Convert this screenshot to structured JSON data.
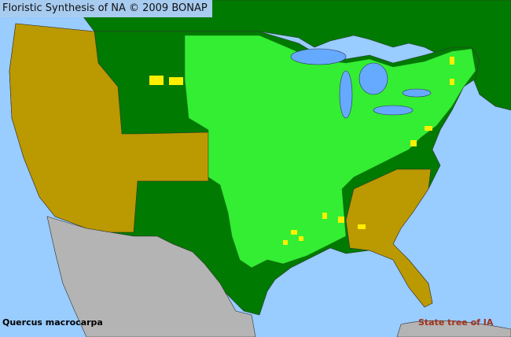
{
  "header": {
    "title": "Floristic Synthesis of NA © 2009 BONAP"
  },
  "map": {
    "species": "Quercus macrocarpa",
    "note": "State tree of IA",
    "colors": {
      "ocean": "#99ccff",
      "present_native": "#33ee33",
      "absent_state": "#bb9900",
      "present_state_absent_county": "#007a00",
      "rare_yellow": "#ffee00",
      "outside": "#b4b4b4"
    }
  }
}
